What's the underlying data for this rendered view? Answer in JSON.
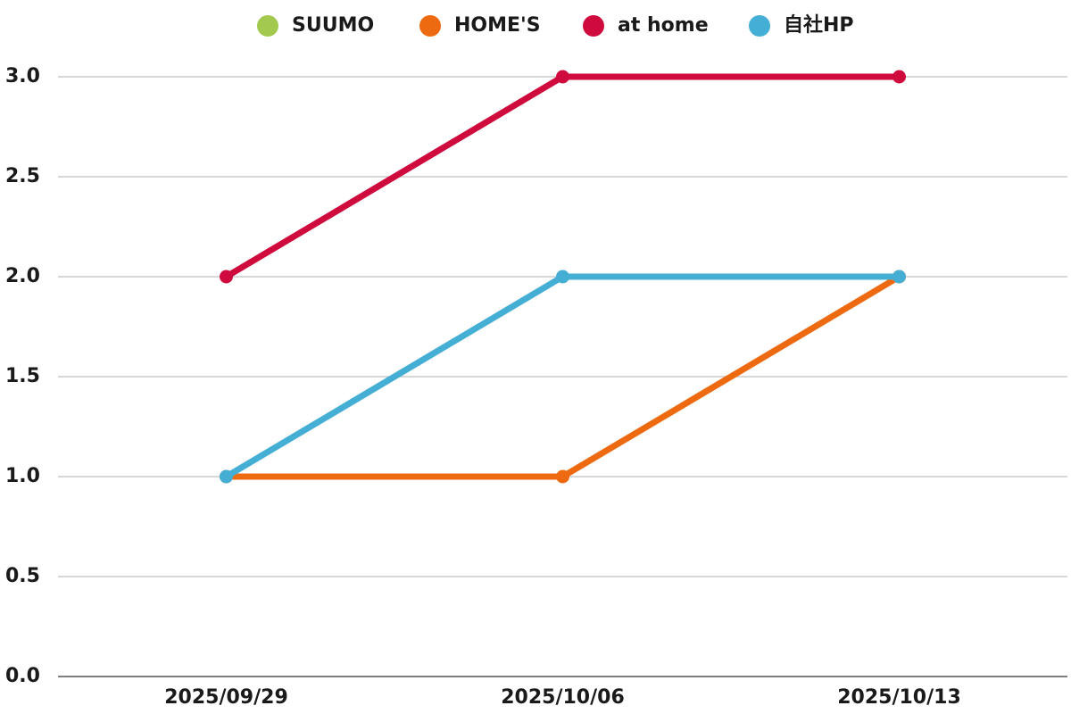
{
  "chart_data": {
    "type": "line",
    "x": [
      "2025/09/29",
      "2025/10/06",
      "2025/10/13"
    ],
    "series": [
      {
        "name": "SUUMO",
        "color": "#a4c94f",
        "values": [
          null,
          null,
          null
        ]
      },
      {
        "name": "HOME'S",
        "color": "#ee6a10",
        "values": [
          1,
          1,
          2
        ]
      },
      {
        "name": "at home",
        "color": "#cf0a3c",
        "values": [
          2,
          3,
          3
        ]
      },
      {
        "name": "自社HP",
        "color": "#44aed4",
        "values": [
          1,
          2,
          2
        ]
      }
    ],
    "ylim": [
      0,
      3
    ],
    "yticks": [
      {
        "value": 0,
        "label": "0.0"
      },
      0.5,
      {
        "value": 1,
        "label": "1.0"
      },
      1.5,
      {
        "value": 2,
        "label": "2.0"
      },
      2.5,
      {
        "value": 3,
        "label": "3.0"
      }
    ],
    "grid": true,
    "legend": "top"
  }
}
